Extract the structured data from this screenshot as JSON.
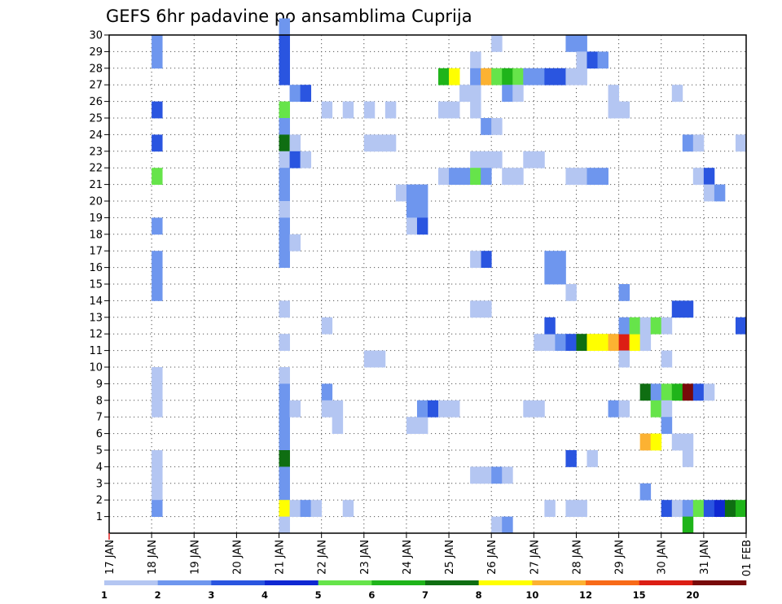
{
  "chart_data": {
    "type": "heatmap",
    "title": "GEFS 6hr padavine po ansamblima Cuprija",
    "xlabel": "",
    "ylabel": "",
    "x_tick_labels": [
      "17 JAN",
      "18 JAN",
      "19 JAN",
      "20 JAN",
      "21 JAN",
      "22 JAN",
      "23 JAN",
      "24 JAN",
      "25 JAN",
      "26 JAN",
      "27 JAN",
      "28 JAN",
      "29 JAN",
      "30 JAN",
      "31 JAN",
      "01 FEB"
    ],
    "y_tick_labels": [
      "1",
      "2",
      "3",
      "4",
      "5",
      "6",
      "7",
      "8",
      "9",
      "10",
      "11",
      "12",
      "13",
      "14",
      "15",
      "16",
      "17",
      "18",
      "19",
      "20",
      "21",
      "22",
      "23",
      "24",
      "25",
      "26",
      "27",
      "28",
      "29",
      "30"
    ],
    "x_range_days_since_17jan": [
      0,
      15
    ],
    "y_range_member": [
      0,
      30
    ],
    "time_step_hours": 6,
    "grid": "dotted",
    "legend": {
      "placement": "bottom",
      "thresholds": [
        "1",
        "2",
        "3",
        "4",
        "5",
        "6",
        "7",
        "8",
        "10",
        "12",
        "15",
        "20"
      ],
      "colors": [
        "#b4c6f2",
        "#6e96ee",
        "#2a55e0",
        "#0f28d2",
        "#66e44a",
        "#1fb41a",
        "#0f6e12",
        "#ffff00",
        "#fcb232",
        "#f86a18",
        "#dc1e14",
        "#780a0a"
      ]
    },
    "cells": [
      [
        1,
        29,
        1
      ],
      [
        1,
        28,
        1
      ],
      [
        1,
        25,
        2
      ],
      [
        1,
        23,
        2
      ],
      [
        1,
        21,
        4
      ],
      [
        1,
        18,
        1
      ],
      [
        1,
        16,
        1
      ],
      [
        1,
        15,
        1
      ],
      [
        1,
        14,
        1
      ],
      [
        1,
        9,
        0
      ],
      [
        1,
        8,
        0
      ],
      [
        1,
        7,
        0
      ],
      [
        1,
        4,
        0
      ],
      [
        1,
        3,
        0
      ],
      [
        1,
        2,
        0
      ],
      [
        1,
        1,
        1
      ],
      [
        4,
        30,
        1
      ],
      [
        4,
        29,
        2
      ],
      [
        4,
        28,
        2
      ],
      [
        4,
        27,
        2
      ],
      [
        4,
        25,
        4
      ],
      [
        4,
        24,
        1
      ],
      [
        4,
        23,
        6
      ],
      [
        4,
        22,
        0
      ],
      [
        4,
        21,
        1
      ],
      [
        4,
        20,
        1
      ],
      [
        4,
        19,
        0
      ],
      [
        4,
        18,
        1
      ],
      [
        4,
        17,
        1
      ],
      [
        4,
        16,
        1
      ],
      [
        4,
        13,
        0
      ],
      [
        4,
        11,
        0
      ],
      [
        4,
        9,
        0
      ],
      [
        4,
        8,
        1
      ],
      [
        4,
        7,
        1
      ],
      [
        4,
        6,
        1
      ],
      [
        4,
        5,
        1
      ],
      [
        4,
        4,
        6
      ],
      [
        4,
        3,
        1
      ],
      [
        4,
        2,
        1
      ],
      [
        4,
        1,
        7
      ],
      [
        4,
        0,
        0
      ],
      [
        4.25,
        26,
        1
      ],
      [
        4.5,
        26,
        2
      ],
      [
        4.25,
        23,
        0
      ],
      [
        4.25,
        22,
        2
      ],
      [
        4.5,
        22,
        0
      ],
      [
        4.25,
        17,
        0
      ],
      [
        4.25,
        7,
        0
      ],
      [
        4.25,
        1,
        0
      ],
      [
        4.5,
        1,
        1
      ],
      [
        4.75,
        1,
        0
      ],
      [
        5,
        25,
        0
      ],
      [
        5,
        12,
        0
      ],
      [
        5,
        8,
        1
      ],
      [
        5,
        7,
        0
      ],
      [
        5.25,
        7,
        0
      ],
      [
        5.25,
        6,
        0
      ],
      [
        5.5,
        25,
        0
      ],
      [
        5.5,
        1,
        0
      ],
      [
        6,
        25,
        0
      ],
      [
        6,
        23,
        0
      ],
      [
        6.25,
        23,
        0
      ],
      [
        6.5,
        23,
        0
      ],
      [
        6.5,
        25,
        0
      ],
      [
        6,
        10,
        0
      ],
      [
        6.25,
        10,
        0
      ],
      [
        6.75,
        20,
        0
      ],
      [
        7,
        20,
        1
      ],
      [
        7.25,
        20,
        1
      ],
      [
        7,
        19,
        1
      ],
      [
        7.25,
        19,
        1
      ],
      [
        7,
        18,
        0
      ],
      [
        7.25,
        18,
        2
      ],
      [
        7,
        6,
        0
      ],
      [
        7.25,
        6,
        0
      ],
      [
        7.25,
        7,
        1
      ],
      [
        7.5,
        7,
        2
      ],
      [
        7.75,
        27,
        5
      ],
      [
        8,
        27,
        7
      ],
      [
        7.75,
        25,
        0
      ],
      [
        8,
        25,
        0
      ],
      [
        7.75,
        21,
        0
      ],
      [
        8,
        21,
        1
      ],
      [
        8.25,
        21,
        1
      ],
      [
        7.75,
        7,
        0
      ],
      [
        8,
        7,
        0
      ],
      [
        8.25,
        26,
        0
      ],
      [
        8.5,
        26,
        0
      ],
      [
        8.5,
        25,
        0
      ],
      [
        8.5,
        22,
        0
      ],
      [
        8.75,
        22,
        0
      ],
      [
        9,
        22,
        0
      ],
      [
        8.5,
        21,
        4
      ],
      [
        8.75,
        21,
        1
      ],
      [
        8.75,
        24,
        1
      ],
      [
        8.75,
        16,
        2
      ],
      [
        8.5,
        16,
        0
      ],
      [
        8.5,
        13,
        0
      ],
      [
        8.75,
        13,
        0
      ],
      [
        8.5,
        3,
        0
      ],
      [
        8.75,
        3,
        0
      ],
      [
        8.5,
        28,
        0
      ],
      [
        8.5,
        27,
        1
      ],
      [
        8.75,
        27,
        8
      ],
      [
        9,
        27,
        4
      ],
      [
        9.25,
        27,
        5
      ],
      [
        9.5,
        27,
        4
      ],
      [
        9.75,
        27,
        1
      ],
      [
        10,
        27,
        1
      ],
      [
        10.25,
        27,
        2
      ],
      [
        10.5,
        27,
        2
      ],
      [
        10.75,
        27,
        0
      ],
      [
        11,
        27,
        0
      ],
      [
        9,
        29,
        0
      ],
      [
        9.25,
        26,
        1
      ],
      [
        9.5,
        26,
        0
      ],
      [
        9,
        24,
        0
      ],
      [
        9.25,
        21,
        0
      ],
      [
        9.5,
        21,
        0
      ],
      [
        9.75,
        22,
        0
      ],
      [
        10,
        22,
        0
      ],
      [
        9,
        3,
        1
      ],
      [
        9.25,
        3,
        0
      ],
      [
        9,
        0,
        0
      ],
      [
        9.25,
        0,
        1
      ],
      [
        9.75,
        7,
        0
      ],
      [
        10,
        7,
        0
      ],
      [
        10.25,
        16,
        1
      ],
      [
        10.5,
        16,
        1
      ],
      [
        10.25,
        15,
        1
      ],
      [
        10.5,
        15,
        1
      ],
      [
        10.75,
        14,
        0
      ],
      [
        10.25,
        1,
        0
      ],
      [
        10,
        11,
        0
      ],
      [
        10.25,
        11,
        0
      ],
      [
        10.5,
        11,
        1
      ],
      [
        10.25,
        12,
        2
      ],
      [
        10.75,
        11,
        2
      ],
      [
        11,
        11,
        6
      ],
      [
        11.25,
        11,
        7
      ],
      [
        11.5,
        11,
        7
      ],
      [
        11.75,
        11,
        8
      ],
      [
        12,
        11,
        10
      ],
      [
        12.25,
        11,
        7
      ],
      [
        12.5,
        11,
        0
      ],
      [
        10.75,
        29,
        1
      ],
      [
        11,
        29,
        1
      ],
      [
        11,
        28,
        0
      ],
      [
        11.25,
        28,
        2
      ],
      [
        11.5,
        28,
        1
      ],
      [
        10.75,
        21,
        0
      ],
      [
        11,
        21,
        0
      ],
      [
        11.25,
        21,
        1
      ],
      [
        11.5,
        21,
        1
      ],
      [
        10.75,
        4,
        2
      ],
      [
        11.25,
        4,
        0
      ],
      [
        10.75,
        1,
        0
      ],
      [
        11,
        1,
        0
      ],
      [
        11.75,
        26,
        0
      ],
      [
        11.75,
        25,
        0
      ],
      [
        12,
        25,
        0
      ],
      [
        12,
        14,
        1
      ],
      [
        12,
        12,
        1
      ],
      [
        12.25,
        12,
        4
      ],
      [
        12.5,
        12,
        0
      ],
      [
        12.75,
        12,
        4
      ],
      [
        13,
        12,
        0
      ],
      [
        12,
        10,
        0
      ],
      [
        11.75,
        7,
        1
      ],
      [
        12,
        7,
        0
      ],
      [
        12.5,
        8,
        6
      ],
      [
        12.75,
        8,
        1
      ],
      [
        13,
        8,
        4
      ],
      [
        13.25,
        8,
        5
      ],
      [
        13.5,
        8,
        11
      ],
      [
        13.75,
        8,
        2
      ],
      [
        14,
        8,
        0
      ],
      [
        12.75,
        7,
        4
      ],
      [
        13,
        7,
        0
      ],
      [
        13,
        6,
        1
      ],
      [
        12.5,
        5,
        8
      ],
      [
        12.75,
        5,
        7
      ],
      [
        13.25,
        5,
        0
      ],
      [
        13.5,
        5,
        0
      ],
      [
        13.5,
        4,
        0
      ],
      [
        12.5,
        2,
        1
      ],
      [
        13.25,
        26,
        0
      ],
      [
        13.5,
        23,
        1
      ],
      [
        13.75,
        23,
        0
      ],
      [
        13.75,
        21,
        0
      ],
      [
        14,
        21,
        2
      ],
      [
        14,
        20,
        0
      ],
      [
        14.25,
        20,
        1
      ],
      [
        13.25,
        13,
        2
      ],
      [
        13.5,
        13,
        2
      ],
      [
        13.0,
        10,
        0
      ],
      [
        14.75,
        12,
        2
      ],
      [
        13,
        1,
        2
      ],
      [
        13.25,
        1,
        0
      ],
      [
        13.5,
        1,
        1
      ],
      [
        13.75,
        1,
        4
      ],
      [
        14,
        1,
        2
      ],
      [
        14.25,
        1,
        3
      ],
      [
        14.5,
        1,
        6
      ],
      [
        14.75,
        1,
        5
      ],
      [
        13.5,
        0,
        5
      ],
      [
        14.75,
        23,
        0
      ]
    ]
  }
}
